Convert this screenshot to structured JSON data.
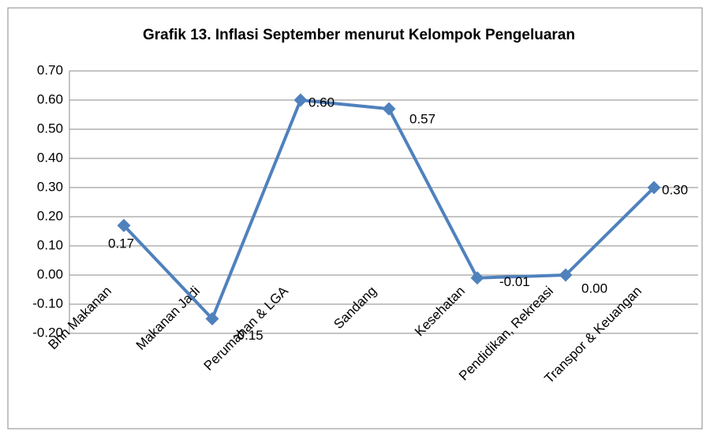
{
  "chart_data": {
    "type": "line",
    "title": "Grafik 13. Inflasi September menurut Kelompok Pengeluaran",
    "categories": [
      "Bhn Makanan",
      "Makanan Jadi",
      "Perumahan & LGA",
      "Sandang",
      "Kesehatan",
      "Pendidikan, Rekreasi",
      "Transpor & Keuangan"
    ],
    "series": [
      {
        "name": "Inflasi",
        "color": "#4f81bd",
        "values": [
          0.17,
          -0.15,
          0.6,
          0.57,
          -0.01,
          0.0,
          0.3
        ],
        "value_labels": [
          "0.17",
          "-0.15",
          "0.60",
          "0.57",
          "-0.01",
          "0.00",
          "0.30"
        ]
      }
    ],
    "ylim": [
      -0.2,
      0.7
    ],
    "yticks": [
      {
        "value": -0.2,
        "label": "-0.20"
      },
      {
        "value": -0.1,
        "label": "-0.10"
      },
      {
        "value": 0,
        "label": "0.00"
      },
      {
        "value": 0.1,
        "label": "0.10"
      },
      {
        "value": 0.2,
        "label": "0.20"
      },
      {
        "value": 0.3,
        "label": "0.30"
      },
      {
        "value": 0.4,
        "label": "0.40"
      },
      {
        "value": 0.5,
        "label": "0.50"
      },
      {
        "value": 0.6,
        "label": "0.60"
      },
      {
        "value": 0.7,
        "label": "0.70"
      }
    ],
    "grid": true
  }
}
